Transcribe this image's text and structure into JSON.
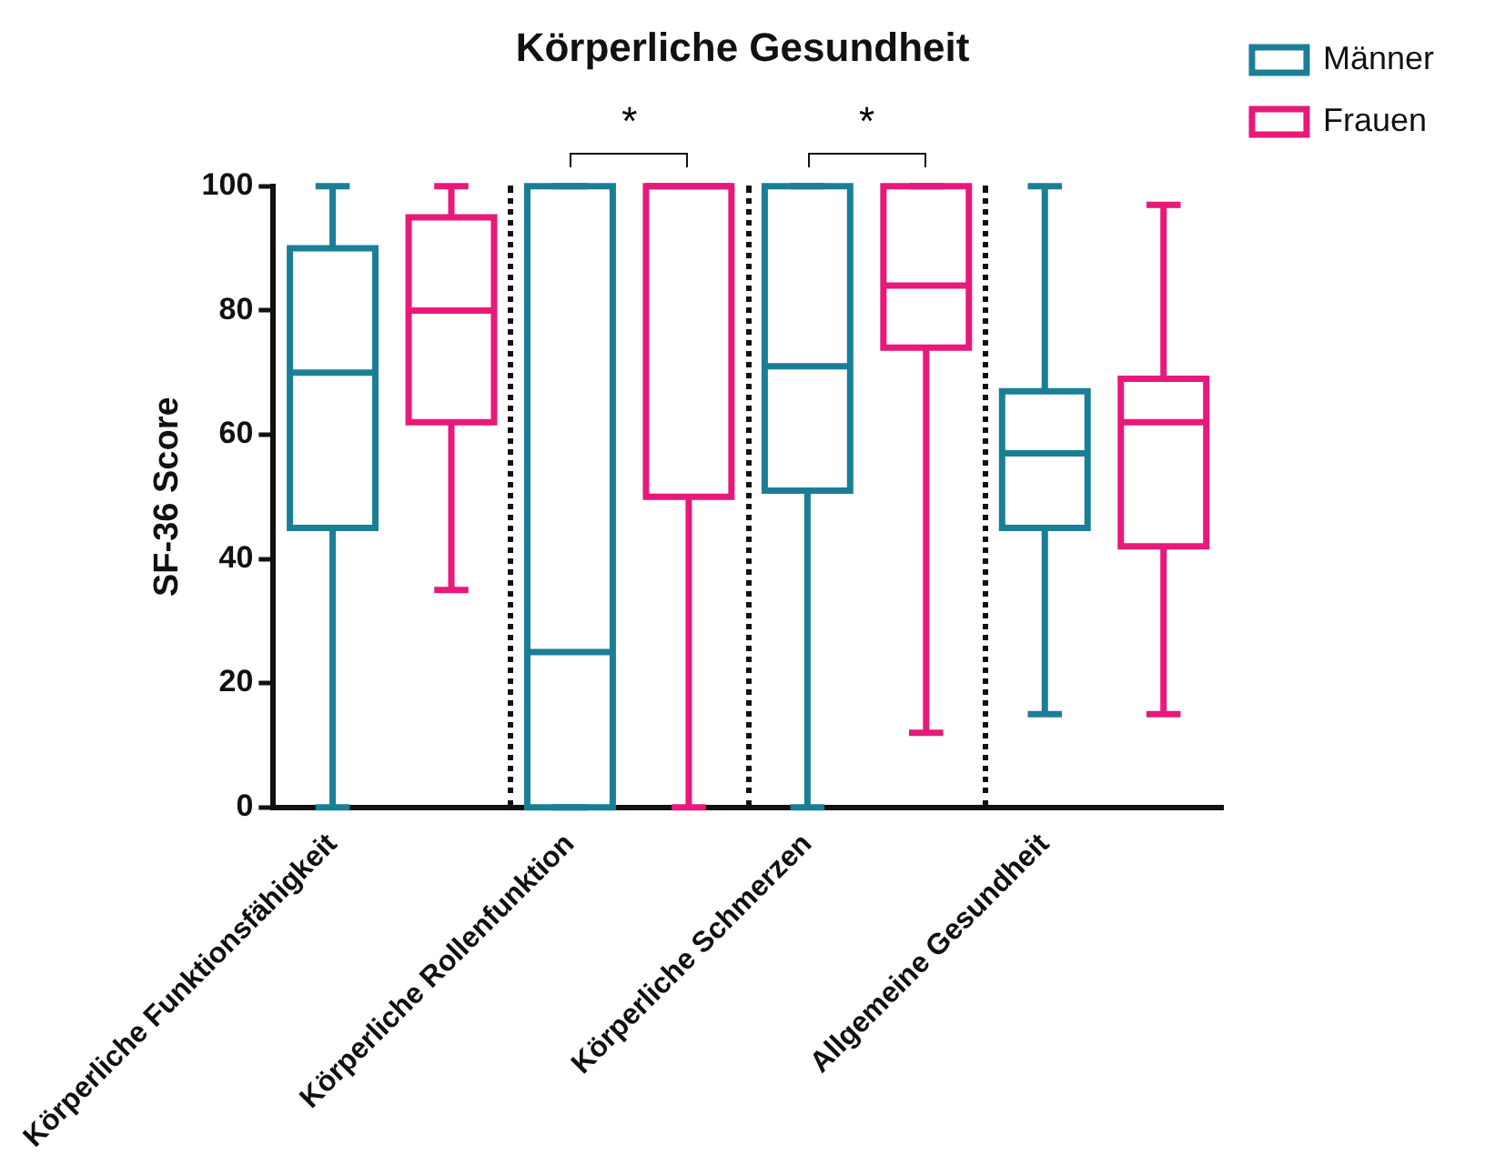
{
  "chart_data": {
    "type": "box",
    "title": "Körperliche Gesundheit",
    "ylabel": "SF-36 Score",
    "categories": [
      "Körperliche Funktionsfähigkeit",
      null,
      "Körperliche Rollenfunktion",
      null,
      "Körperliche Schmerzen",
      null,
      "Allgemeine Gesundheit",
      null
    ],
    "series": [
      {
        "name": "Männer",
        "color": "#1a7f96",
        "boxes": [
          {
            "low": 0,
            "q1": 45,
            "median": 70,
            "q3": 90,
            "high": 100
          },
          null,
          {
            "low": 0,
            "q1": 0,
            "median": 25,
            "q3": 100,
            "high": 100
          },
          null,
          {
            "low": 0,
            "q1": 51,
            "median": 71,
            "q3": 100,
            "high": 100
          },
          null,
          {
            "low": 15,
            "q1": 45,
            "median": 57,
            "q3": 67,
            "high": 100
          },
          null
        ]
      },
      {
        "name": "Frauen",
        "color": "#e8197a",
        "boxes": [
          null,
          {
            "low": 35,
            "q1": 62,
            "median": 80,
            "q3": 95,
            "high": 100
          },
          null,
          {
            "low": 0,
            "q1": 50,
            "median": 100,
            "q3": 100,
            "high": 100
          },
          null,
          {
            "low": 12,
            "q1": 74,
            "median": 84,
            "q3": 100,
            "high": 100
          },
          null,
          {
            "low": 15,
            "q1": 42,
            "median": 62,
            "q3": 69,
            "high": 97
          }
        ]
      }
    ],
    "ylim": [
      0,
      100
    ],
    "yticks": [
      0,
      20,
      40,
      60,
      80,
      100
    ],
    "grid": false,
    "legend": "top right",
    "annotations": [
      {
        "text": "*",
        "x": "Körperliche Rollenfunktion",
        "y": 100
      },
      {
        "text": "*",
        "x": "Körperliche Schmerzen",
        "y": 100
      }
    ]
  }
}
